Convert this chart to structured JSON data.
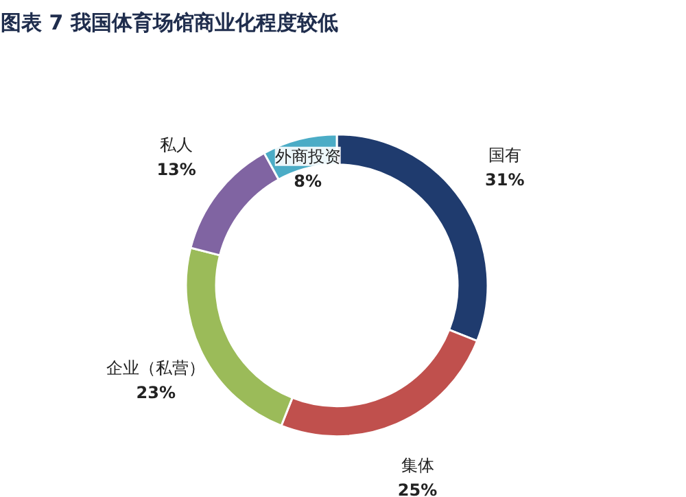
{
  "chart_data": {
    "type": "donut",
    "title": "图表 7    我国体育场馆商业化程度较低",
    "categories": [
      "国有",
      "集体",
      "企业（私营）",
      "私人",
      "外商投资"
    ],
    "values": [
      31,
      25,
      23,
      13,
      8
    ],
    "colors": [
      "#1f3b6e",
      "#c0504d",
      "#9bbb59",
      "#8064a2",
      "#4bacc6"
    ],
    "value_labels": [
      "31%",
      "25%",
      "23%",
      "13%",
      "8%"
    ]
  }
}
